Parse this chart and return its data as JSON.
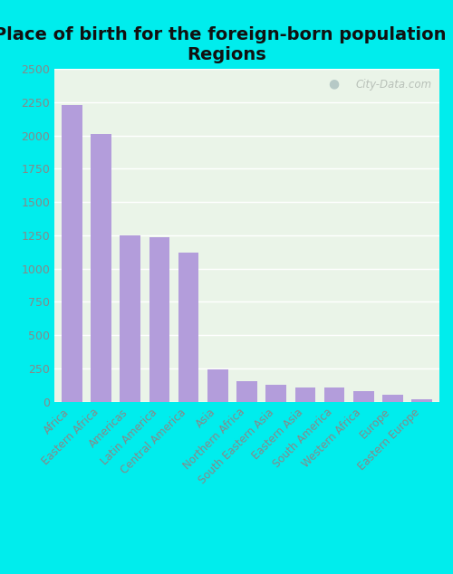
{
  "title": "Place of birth for the foreign-born population -\nRegions",
  "categories": [
    "Africa",
    "Eastern Africa",
    "Americas",
    "Latin America",
    "Central America",
    "Asia",
    "Northern Africa",
    "South Eastern Asia",
    "Eastern Asia",
    "South America",
    "Western Africa",
    "Europe",
    "Eastern Europe"
  ],
  "values": [
    2230,
    2010,
    1250,
    1235,
    1120,
    240,
    155,
    130,
    105,
    105,
    80,
    55,
    20
  ],
  "bar_color": "#b39ddb",
  "background_outer": "#00eded",
  "background_inner": "#eaf4e8",
  "grid_color": "#ffffff",
  "ylim": [
    0,
    2500
  ],
  "yticks": [
    0,
    250,
    500,
    750,
    1000,
    1250,
    1500,
    1750,
    2000,
    2250,
    2500
  ],
  "title_fontsize": 14,
  "tick_label_fontsize": 9,
  "xtick_label_fontsize": 8.5,
  "watermark": "City-Data.com",
  "tick_color": "#888888",
  "title_color": "#111111"
}
